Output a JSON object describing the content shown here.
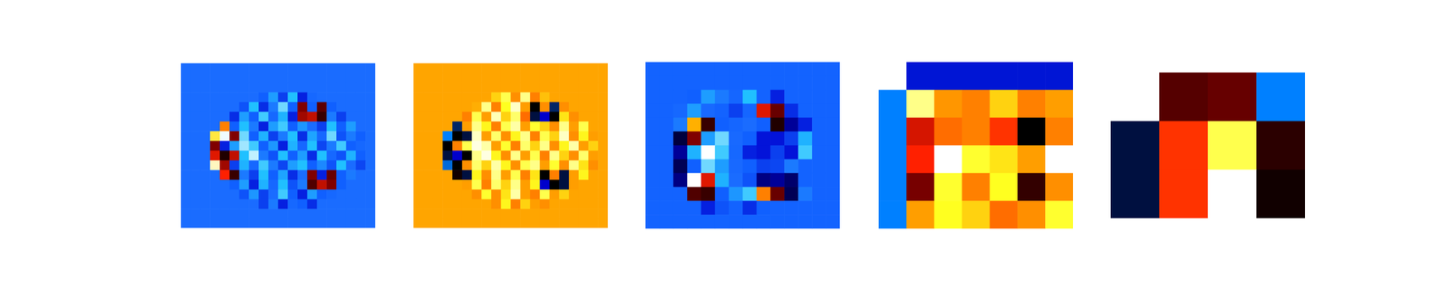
{
  "chart_data": [
    {
      "type": "heatmap",
      "tick_labels": false,
      "zlim": [
        0,
        100
      ],
      "cells": [
        [
          38,
          38,
          38,
          38,
          38,
          38,
          38,
          38,
          38,
          38,
          38,
          38,
          38,
          38,
          38,
          38,
          38,
          38,
          38,
          38
        ],
        [
          38,
          38,
          38,
          38,
          38,
          38,
          38,
          38,
          38,
          38,
          38,
          38,
          38,
          38,
          38,
          38,
          38,
          38,
          38,
          38
        ],
        [
          38,
          38,
          38,
          38,
          38,
          38,
          38,
          38,
          38,
          38,
          38,
          38,
          38,
          38,
          38,
          38,
          38,
          38,
          38,
          38
        ],
        [
          38,
          38,
          38,
          38,
          38,
          38,
          38,
          38,
          30,
          45,
          25,
          50,
          20,
          35,
          38,
          38,
          38,
          38,
          38,
          38
        ],
        [
          38,
          38,
          38,
          38,
          38,
          38,
          28,
          50,
          22,
          40,
          55,
          30,
          92,
          30,
          95,
          30,
          38,
          38,
          38,
          38
        ],
        [
          38,
          38,
          38,
          38,
          38,
          22,
          45,
          30,
          52,
          35,
          48,
          20,
          90,
          88,
          98,
          40,
          25,
          38,
          38,
          38
        ],
        [
          38,
          38,
          38,
          38,
          80,
          30,
          50,
          40,
          20,
          45,
          52,
          30,
          44,
          38,
          25,
          50,
          30,
          45,
          38,
          38
        ],
        [
          38,
          38,
          38,
          74,
          66,
          92,
          55,
          30,
          48,
          25,
          40,
          50,
          22,
          46,
          35,
          55,
          28,
          40,
          30,
          38
        ],
        [
          38,
          38,
          38,
          92,
          20,
          45,
          58,
          52,
          30,
          44,
          20,
          48,
          35,
          50,
          26,
          40,
          52,
          30,
          35,
          38
        ],
        [
          38,
          38,
          38,
          86,
          100,
          88,
          50,
          60,
          40,
          28,
          50,
          30,
          45,
          22,
          50,
          35,
          28,
          48,
          30,
          38
        ],
        [
          38,
          38,
          38,
          70,
          90,
          25,
          48,
          35,
          52,
          40,
          26,
          45,
          50,
          30,
          42,
          28,
          50,
          38,
          26,
          38
        ],
        [
          38,
          38,
          38,
          38,
          84,
          98,
          40,
          25,
          50,
          30,
          46,
          22,
          38,
          92,
          20,
          94,
          30,
          40,
          38,
          38
        ],
        [
          38,
          38,
          38,
          38,
          38,
          30,
          45,
          20,
          48,
          35,
          50,
          28,
          40,
          96,
          88,
          92,
          30,
          38,
          38,
          38
        ],
        [
          38,
          38,
          38,
          38,
          38,
          38,
          28,
          44,
          25,
          38,
          52,
          30,
          20,
          45,
          30,
          35,
          38,
          38,
          38,
          38
        ],
        [
          38,
          38,
          38,
          38,
          38,
          38,
          38,
          38,
          25,
          40,
          20,
          35,
          30,
          22,
          38,
          38,
          38,
          38,
          38,
          38
        ],
        [
          38,
          38,
          38,
          38,
          38,
          38,
          38,
          38,
          38,
          38,
          38,
          38,
          38,
          38,
          38,
          38,
          38,
          38,
          38,
          38
        ],
        [
          38,
          38,
          38,
          38,
          38,
          38,
          38,
          38,
          38,
          38,
          38,
          38,
          38,
          38,
          38,
          38,
          38,
          38,
          38,
          38
        ]
      ]
    },
    {
      "type": "heatmap",
      "tick_labels": false,
      "zlim": [
        0,
        100
      ],
      "cells": [
        [
          75,
          75,
          75,
          75,
          75,
          75,
          75,
          75,
          75,
          75,
          75,
          75,
          75,
          75,
          75,
          75,
          75,
          75,
          75,
          75
        ],
        [
          75,
          75,
          75,
          75,
          75,
          75,
          75,
          75,
          75,
          75,
          75,
          75,
          75,
          75,
          75,
          75,
          75,
          75,
          75,
          75
        ],
        [
          75,
          75,
          75,
          75,
          75,
          75,
          75,
          75,
          75,
          75,
          75,
          75,
          75,
          75,
          75,
          75,
          75,
          75,
          75,
          75
        ],
        [
          75,
          75,
          75,
          75,
          75,
          75,
          75,
          75,
          80,
          88,
          72,
          92,
          70,
          78,
          75,
          75,
          75,
          75,
          75,
          75
        ],
        [
          75,
          75,
          75,
          75,
          75,
          75,
          76,
          92,
          70,
          85,
          96,
          74,
          30,
          72,
          20,
          72,
          75,
          75,
          75,
          75
        ],
        [
          75,
          75,
          75,
          75,
          75,
          70,
          88,
          74,
          95,
          80,
          90,
          68,
          22,
          0,
          30,
          82,
          72,
          75,
          75,
          75
        ],
        [
          75,
          75,
          75,
          75,
          20,
          74,
          92,
          84,
          70,
          88,
          94,
          74,
          86,
          80,
          72,
          92,
          74,
          88,
          75,
          75
        ],
        [
          75,
          75,
          75,
          12,
          30,
          22,
          96,
          74,
          90,
          72,
          84,
          92,
          70,
          88,
          80,
          96,
          72,
          84,
          74,
          75
        ],
        [
          75,
          75,
          75,
          30,
          70,
          88,
          98,
          94,
          74,
          86,
          70,
          90,
          80,
          92,
          72,
          84,
          94,
          74,
          80,
          75
        ],
        [
          75,
          75,
          75,
          22,
          0,
          30,
          92,
          98,
          84,
          72,
          92,
          74,
          88,
          70,
          92,
          80,
          72,
          90,
          74,
          75
        ],
        [
          75,
          75,
          75,
          14,
          30,
          72,
          90,
          80,
          94,
          84,
          72,
          88,
          92,
          74,
          86,
          72,
          92,
          82,
          72,
          75
        ],
        [
          75,
          75,
          75,
          75,
          32,
          22,
          84,
          72,
          92,
          74,
          88,
          70,
          82,
          30,
          70,
          22,
          74,
          84,
          75,
          75
        ],
        [
          75,
          75,
          75,
          75,
          75,
          74,
          88,
          70,
          90,
          80,
          92,
          74,
          84,
          0,
          30,
          22,
          74,
          75,
          75,
          75
        ],
        [
          75,
          75,
          75,
          75,
          75,
          75,
          72,
          86,
          72,
          82,
          94,
          74,
          70,
          88,
          74,
          80,
          75,
          75,
          75,
          75
        ],
        [
          75,
          75,
          75,
          75,
          75,
          75,
          75,
          75,
          72,
          84,
          70,
          80,
          74,
          72,
          75,
          75,
          75,
          75,
          75,
          75
        ],
        [
          75,
          75,
          75,
          75,
          75,
          75,
          75,
          75,
          75,
          75,
          75,
          75,
          75,
          75,
          75,
          75,
          75,
          75,
          75,
          75
        ],
        [
          75,
          75,
          75,
          75,
          75,
          75,
          75,
          75,
          75,
          75,
          75,
          75,
          75,
          75,
          75,
          75,
          75,
          75,
          75,
          75
        ]
      ]
    },
    {
      "type": "heatmap",
      "tick_labels": false,
      "zlim": [
        0,
        100
      ],
      "cells": [
        [
          32,
          32,
          32,
          32,
          32,
          32,
          32,
          32,
          32,
          32,
          32,
          32,
          32,
          32
        ],
        [
          32,
          32,
          32,
          32,
          32,
          32,
          32,
          32,
          32,
          32,
          32,
          32,
          32,
          32
        ],
        [
          32,
          32,
          32,
          30,
          45,
          40,
          34,
          50,
          32,
          20,
          32,
          32,
          32,
          32
        ],
        [
          32,
          32,
          35,
          45,
          36,
          32,
          25,
          34,
          86,
          94,
          22,
          32,
          32,
          32
        ],
        [
          32,
          32,
          40,
          78,
          98,
          30,
          34,
          38,
          30,
          100,
          10,
          20,
          32,
          32
        ],
        [
          32,
          32,
          2,
          92,
          45,
          55,
          36,
          30,
          18,
          18,
          25,
          48,
          32,
          32
        ],
        [
          32,
          32,
          10,
          48,
          68,
          52,
          35,
          20,
          18,
          25,
          18,
          52,
          32,
          32
        ],
        [
          32,
          32,
          4,
          30,
          55,
          45,
          36,
          30,
          25,
          26,
          40,
          32,
          32,
          32
        ],
        [
          32,
          32,
          8,
          68,
          86,
          48,
          38,
          28,
          8,
          10,
          6,
          32,
          32,
          32
        ],
        [
          32,
          32,
          32,
          96,
          98,
          30,
          44,
          52,
          80,
          94,
          4,
          40,
          32,
          32
        ],
        [
          32,
          32,
          32,
          32,
          20,
          28,
          32,
          22,
          30,
          32,
          32,
          32,
          32,
          32
        ],
        [
          32,
          32,
          32,
          32,
          32,
          32,
          32,
          32,
          32,
          32,
          32,
          32,
          32,
          32
        ]
      ]
    },
    {
      "type": "heatmap",
      "tick_labels": false,
      "zlim": [
        0,
        100
      ],
      "cells": [
        [
          null,
          2,
          2,
          2,
          2,
          2,
          2
        ],
        [
          12,
          92,
          73,
          70,
          80,
          70,
          74
        ],
        [
          12,
          55,
          68,
          70,
          62,
          30,
          70
        ],
        [
          12,
          60,
          100,
          86,
          82,
          74,
          100
        ],
        [
          12,
          44,
          86,
          70,
          85,
          36,
          72
        ],
        [
          12,
          74,
          85,
          80,
          68,
          72,
          86
        ]
      ]
    },
    {
      "type": "heatmap",
      "tick_labels": false,
      "zlim": [
        0,
        100
      ],
      "cells": [
        [
          null,
          40,
          42,
          12
        ],
        [
          22,
          62,
          88,
          35
        ],
        [
          22,
          62,
          100,
          32
        ]
      ]
    }
  ]
}
